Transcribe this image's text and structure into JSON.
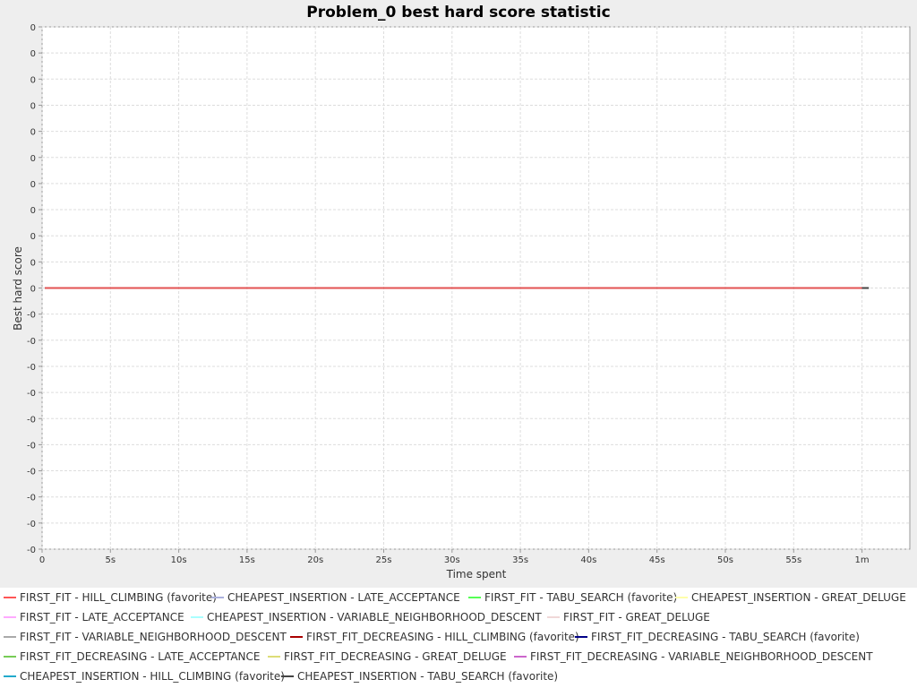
{
  "chart_data": {
    "type": "line",
    "title": "Problem_0 best hard score statistic",
    "xlabel": "Time spent",
    "ylabel": "Best hard score",
    "xlim": [
      0,
      63.5
    ],
    "ylim": [
      -1,
      1
    ],
    "x_ticks": [
      {
        "value": 0,
        "label": "0"
      },
      {
        "value": 5,
        "label": "5s"
      },
      {
        "value": 10,
        "label": "10s"
      },
      {
        "value": 15,
        "label": "15s"
      },
      {
        "value": 20,
        "label": "20s"
      },
      {
        "value": 25,
        "label": "25s"
      },
      {
        "value": 30,
        "label": "30s"
      },
      {
        "value": 35,
        "label": "35s"
      },
      {
        "value": 40,
        "label": "40s"
      },
      {
        "value": 45,
        "label": "45s"
      },
      {
        "value": 50,
        "label": "50s"
      },
      {
        "value": 55,
        "label": "55s"
      },
      {
        "value": 60,
        "label": "1m"
      }
    ],
    "y_ticks": [
      {
        "value": 1.0,
        "label": "0"
      },
      {
        "value": 0.9,
        "label": "0"
      },
      {
        "value": 0.8,
        "label": "0"
      },
      {
        "value": 0.7,
        "label": "0"
      },
      {
        "value": 0.6,
        "label": "0"
      },
      {
        "value": 0.5,
        "label": "0"
      },
      {
        "value": 0.4,
        "label": "0"
      },
      {
        "value": 0.3,
        "label": "0"
      },
      {
        "value": 0.2,
        "label": "0"
      },
      {
        "value": 0.1,
        "label": "0"
      },
      {
        "value": 0.0,
        "label": "0"
      },
      {
        "value": -0.1,
        "label": "-0"
      },
      {
        "value": -0.2,
        "label": "-0"
      },
      {
        "value": -0.3,
        "label": "-0"
      },
      {
        "value": -0.4,
        "label": "-0"
      },
      {
        "value": -0.5,
        "label": "-0"
      },
      {
        "value": -0.6,
        "label": "-0"
      },
      {
        "value": -0.7,
        "label": "-0"
      },
      {
        "value": -0.8,
        "label": "-0"
      },
      {
        "value": -0.9,
        "label": "-0"
      },
      {
        "value": -1.0,
        "label": "-0"
      }
    ],
    "grid": true,
    "legend_position": "bottom",
    "series": [
      {
        "name": "FIRST_FIT - HILL_CLIMBING (favorite)",
        "color": "#ff5555",
        "x": [
          0.2,
          60.0
        ],
        "y": [
          0,
          0
        ]
      },
      {
        "name": "CHEAPEST_INSERTION - LATE_ACCEPTANCE",
        "color": "#aab0dd",
        "x": [
          0.2,
          60.0
        ],
        "y": [
          0,
          0
        ]
      },
      {
        "name": "FIRST_FIT - TABU_SEARCH (favorite)",
        "color": "#55ff55",
        "x": [
          0.2,
          60.0
        ],
        "y": [
          0,
          0
        ]
      },
      {
        "name": "CHEAPEST_INSERTION - GREAT_DELUGE",
        "color": "#ffffaa",
        "x": [
          0.2,
          60.0
        ],
        "y": [
          0,
          0
        ]
      },
      {
        "name": "FIRST_FIT - LATE_ACCEPTANCE",
        "color": "#ffaaff",
        "x": [
          0.2,
          60.0
        ],
        "y": [
          0,
          0
        ]
      },
      {
        "name": "CHEAPEST_INSERTION - VARIABLE_NEIGHBORHOOD_DESCENT",
        "color": "#aaffff",
        "x": [
          0.2,
          60.0
        ],
        "y": [
          0,
          0
        ]
      },
      {
        "name": "FIRST_FIT - GREAT_DELUGE",
        "color": "#f0d8d8",
        "x": [
          0.2,
          60.0
        ],
        "y": [
          0,
          0
        ]
      },
      {
        "name": "FIRST_FIT - VARIABLE_NEIGHBORHOOD_DESCENT",
        "color": "#aaaaaa",
        "x": [
          0.2,
          60.0
        ],
        "y": [
          0,
          0
        ]
      },
      {
        "name": "FIRST_FIT_DECREASING - HILL_CLIMBING (favorite)",
        "color": "#aa0000",
        "x": [
          0.2,
          60.0
        ],
        "y": [
          0,
          0
        ]
      },
      {
        "name": "FIRST_FIT_DECREASING - TABU_SEARCH (favorite)",
        "color": "#000088",
        "x": [
          0.2,
          60.0
        ],
        "y": [
          0,
          0
        ]
      },
      {
        "name": "FIRST_FIT_DECREASING - LATE_ACCEPTANCE",
        "color": "#77cc55",
        "x": [
          0.2,
          60.0
        ],
        "y": [
          0,
          0
        ]
      },
      {
        "name": "FIRST_FIT_DECREASING - GREAT_DELUGE",
        "color": "#dddd77",
        "x": [
          0.2,
          60.0
        ],
        "y": [
          0,
          0
        ]
      },
      {
        "name": "FIRST_FIT_DECREASING - VARIABLE_NEIGHBORHOOD_DESCENT",
        "color": "#cc66cc",
        "x": [
          0.2,
          60.0
        ],
        "y": [
          0,
          0
        ]
      },
      {
        "name": "CHEAPEST_INSERTION - HILL_CLIMBING (favorite)",
        "color": "#22aacc",
        "x": [
          0.2,
          60.0
        ],
        "y": [
          0,
          0
        ]
      },
      {
        "name": "CHEAPEST_INSERTION - TABU_SEARCH (favorite)",
        "color": "#444444",
        "x": [
          0.2,
          60.5
        ],
        "y": [
          0,
          0
        ]
      }
    ]
  }
}
